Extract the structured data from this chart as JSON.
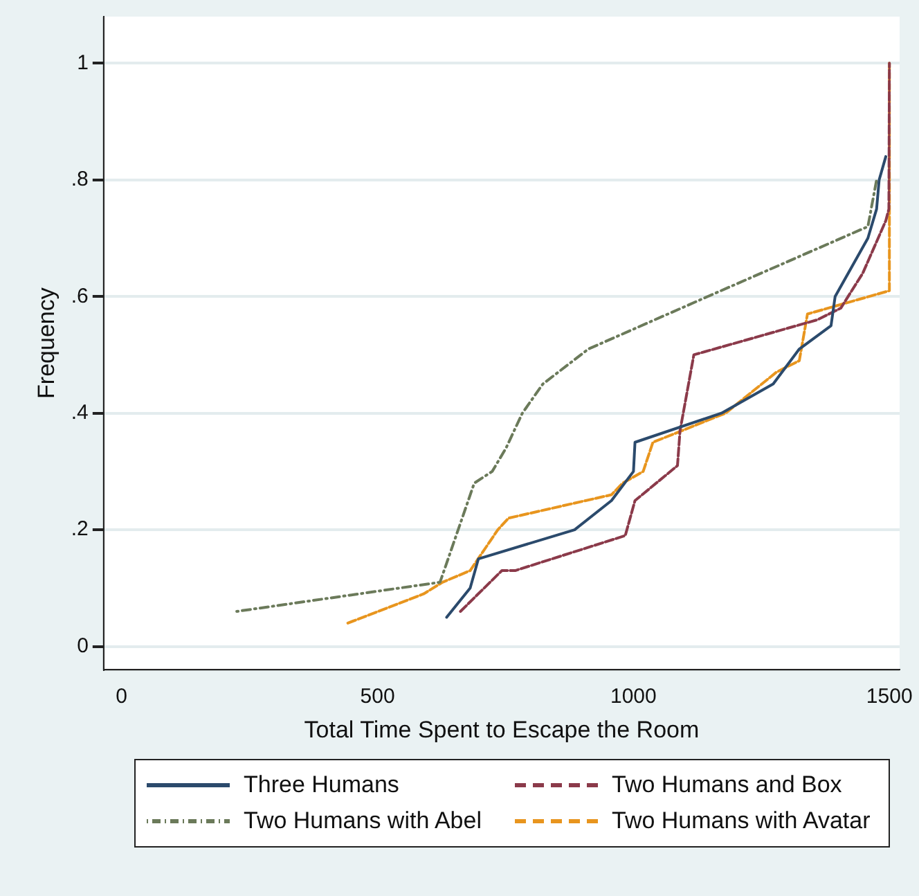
{
  "chart_data": {
    "type": "line",
    "xlabel": "Total Time Spent to Escape the Room",
    "ylabel": "Frequency",
    "xlim": [
      -35,
      1520
    ],
    "xticks": [
      0,
      500,
      1000,
      1500
    ],
    "ylim": [
      -0.04,
      1.08
    ],
    "yticks": [
      0,
      {
        "value": 0.2,
        "label": ".2"
      },
      {
        "value": 0.4,
        "label": ".4"
      },
      {
        "value": 0.6,
        "label": ".6"
      },
      {
        "value": 0.8,
        "label": ".8"
      },
      1
    ],
    "grid": "y",
    "legend": "bottom",
    "marker": "none",
    "series": [
      {
        "name": "Three Humans",
        "color": "#2b4a6c",
        "line_style": "solid",
        "x": [
          635,
          681,
          697,
          885,
          957,
          1000,
          1003,
          1172,
          1273,
          1324,
          1386,
          1394,
          1458,
          1475,
          1480,
          1493
        ],
        "values": [
          0.05,
          0.1,
          0.15,
          0.2,
          0.25,
          0.3,
          0.35,
          0.4,
          0.45,
          0.51,
          0.55,
          0.6,
          0.7,
          0.75,
          0.8,
          0.84
        ]
      },
      {
        "name": "Two Humans and Box",
        "color": "#8b3a4a",
        "line_style": "dashed",
        "x": [
          662,
          743,
          769,
          984,
          1003,
          1086,
          1091,
          1118,
          1359,
          1405,
          1448,
          1493,
          1499,
          1500
        ],
        "values": [
          0.06,
          0.13,
          0.13,
          0.19,
          0.25,
          0.31,
          0.37,
          0.5,
          0.56,
          0.58,
          0.64,
          0.73,
          0.75,
          1
        ]
      },
      {
        "name": "Two Humans with Abel",
        "color": "#6b7a5a",
        "line_style": "dotted",
        "x": [
          225,
          622,
          630,
          689,
          724,
          751,
          783,
          823,
          912,
          1145,
          1458,
          1475
        ],
        "values": [
          0.06,
          0.11,
          0.13,
          0.28,
          0.3,
          0.34,
          0.4,
          0.45,
          0.51,
          0.6,
          0.72,
          0.8
        ]
      },
      {
        "name": "Two Humans with Avatar",
        "color": "#e8951e",
        "line_style": "dashed",
        "x": [
          442,
          590,
          627,
          681,
          735,
          756,
          957,
          979,
          1019,
          1038,
          1180,
          1279,
          1324,
          1338,
          1340,
          1500,
          1500
        ],
        "values": [
          0.04,
          0.09,
          0.11,
          0.13,
          0.2,
          0.22,
          0.26,
          0.28,
          0.3,
          0.35,
          0.4,
          0.47,
          0.49,
          0.56,
          0.57,
          0.61,
          1
        ]
      }
    ]
  }
}
